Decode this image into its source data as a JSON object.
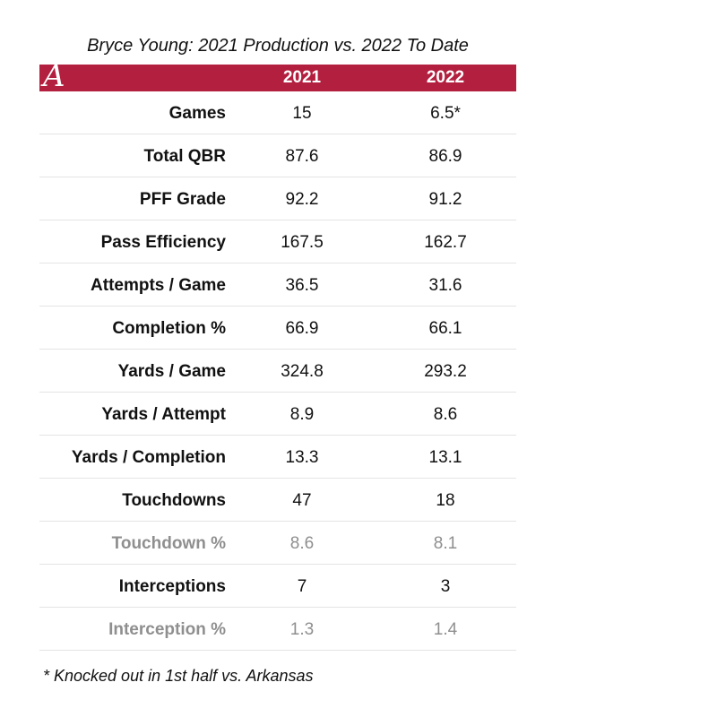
{
  "chart_data": {
    "type": "table",
    "title": "Bryce Young: 2021 Production vs. 2022 To Date",
    "logo_text": "A",
    "columns": [
      "2021",
      "2022"
    ],
    "rows": [
      {
        "label": "Games",
        "v2021": "15",
        "v2022": "6.5*",
        "muted": false
      },
      {
        "label": "Total QBR",
        "v2021": "87.6",
        "v2022": "86.9",
        "muted": false
      },
      {
        "label": "PFF Grade",
        "v2021": "92.2",
        "v2022": "91.2",
        "muted": false
      },
      {
        "label": "Pass Efficiency",
        "v2021": "167.5",
        "v2022": "162.7",
        "muted": false
      },
      {
        "label": "Attempts / Game",
        "v2021": "36.5",
        "v2022": "31.6",
        "muted": false
      },
      {
        "label": "Completion %",
        "v2021": "66.9",
        "v2022": "66.1",
        "muted": false
      },
      {
        "label": "Yards / Game",
        "v2021": "324.8",
        "v2022": "293.2",
        "muted": false
      },
      {
        "label": "Yards / Attempt",
        "v2021": "8.9",
        "v2022": "8.6",
        "muted": false
      },
      {
        "label": "Yards / Completion",
        "v2021": "13.3",
        "v2022": "13.1",
        "muted": false
      },
      {
        "label": "Touchdowns",
        "v2021": "47",
        "v2022": "18",
        "muted": false
      },
      {
        "label": "Touchdown %",
        "v2021": "8.6",
        "v2022": "8.1",
        "muted": true
      },
      {
        "label": "Interceptions",
        "v2021": "7",
        "v2022": "3",
        "muted": false
      },
      {
        "label": "Interception %",
        "v2021": "1.3",
        "v2022": "1.4",
        "muted": true
      }
    ],
    "footnote": "* Knocked out in 1st half vs. Arkansas",
    "colors": {
      "header": "#b31f3f",
      "muted_text": "#8f8f8f",
      "divider": "#e4e4e4"
    }
  }
}
